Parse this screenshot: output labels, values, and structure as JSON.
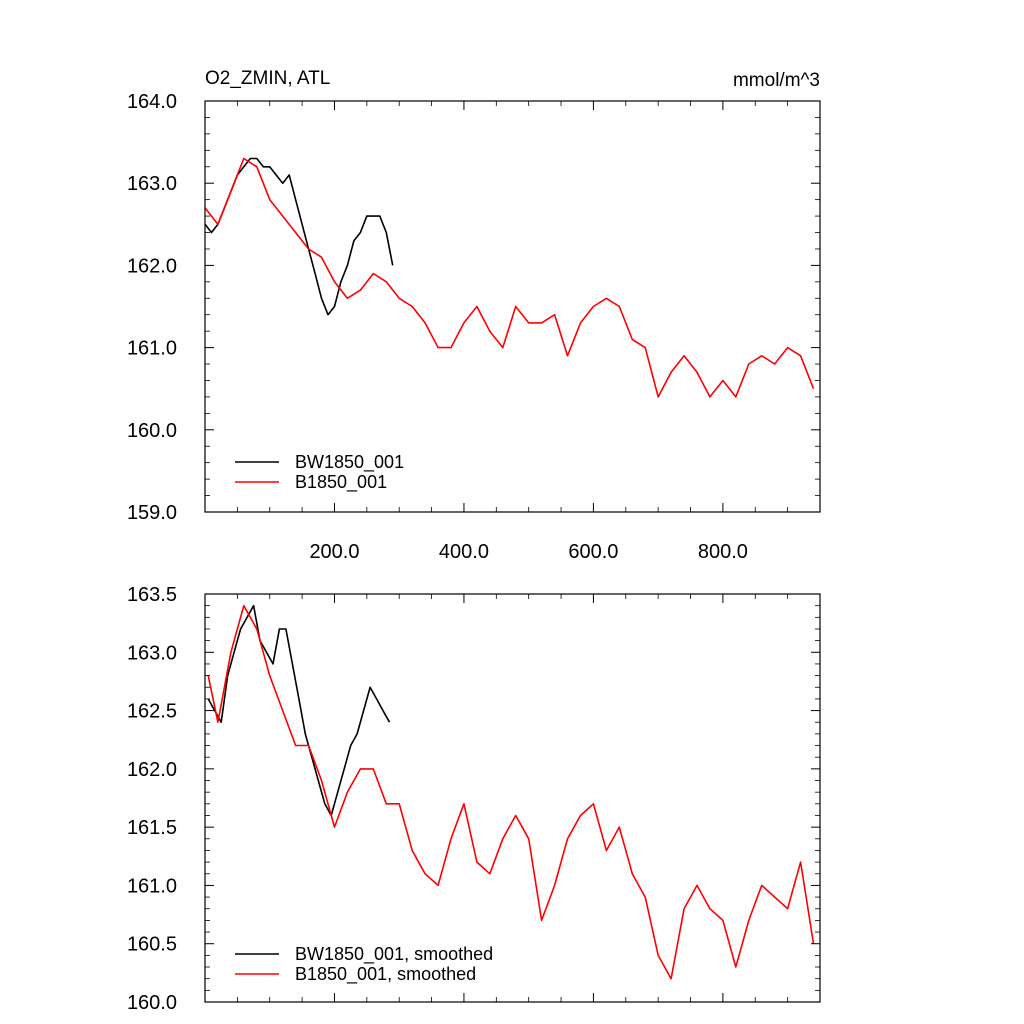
{
  "figure": {
    "title_left": "O2_ZMIN, ATL",
    "title_right": "mmol/m^3"
  },
  "chart_data": [
    {
      "type": "line",
      "xlim": [
        0,
        950
      ],
      "ylim": [
        159.0,
        164.0
      ],
      "x_ticks": [
        200,
        400,
        600,
        800
      ],
      "x_tick_labels": [
        "200.0",
        "400.0",
        "600.0",
        "800.0"
      ],
      "y_ticks": [
        159,
        160,
        161,
        162,
        163,
        164
      ],
      "y_tick_labels": [
        "159.0",
        "160.0",
        "161.0",
        "162.0",
        "163.0",
        "164.0"
      ],
      "grid": false,
      "legend": "bottom-left",
      "series": [
        {
          "name": "BW1850_001",
          "color": "#000000",
          "x": [
            0,
            10,
            20,
            30,
            40,
            50,
            60,
            70,
            80,
            90,
            100,
            110,
            120,
            130,
            140,
            150,
            160,
            170,
            180,
            190,
            200,
            210,
            220,
            230,
            240,
            250,
            260,
            270,
            280,
            290
          ],
          "y": [
            162.5,
            162.4,
            162.5,
            162.7,
            162.9,
            163.1,
            163.2,
            163.3,
            163.3,
            163.2,
            163.2,
            163.1,
            163.0,
            163.1,
            162.8,
            162.5,
            162.2,
            161.9,
            161.6,
            161.4,
            161.5,
            161.8,
            162.0,
            162.3,
            162.4,
            162.6,
            162.6,
            162.6,
            162.4,
            162.0
          ]
        },
        {
          "name": "B1850_001",
          "color": "#ff0000",
          "x": [
            0,
            20,
            40,
            60,
            80,
            100,
            120,
            140,
            160,
            180,
            200,
            220,
            240,
            260,
            280,
            300,
            320,
            340,
            360,
            380,
            400,
            420,
            440,
            460,
            480,
            500,
            520,
            540,
            560,
            580,
            600,
            620,
            640,
            660,
            680,
            700,
            720,
            740,
            760,
            780,
            800,
            820,
            840,
            860,
            880,
            900,
            920,
            940
          ],
          "y": [
            162.7,
            162.5,
            162.9,
            163.3,
            163.2,
            162.8,
            162.6,
            162.4,
            162.2,
            162.1,
            161.8,
            161.6,
            161.7,
            161.9,
            161.8,
            161.6,
            161.5,
            161.3,
            161.0,
            161.0,
            161.3,
            161.5,
            161.2,
            161.0,
            161.5,
            161.3,
            161.3,
            161.4,
            160.9,
            161.3,
            161.5,
            161.6,
            161.5,
            161.1,
            161.0,
            160.4,
            160.7,
            160.9,
            160.7,
            160.4,
            160.6,
            160.4,
            160.8,
            160.9,
            160.8,
            161.0,
            160.9,
            160.5
          ]
        }
      ]
    },
    {
      "type": "line",
      "xlim": [
        0,
        950
      ],
      "ylim": [
        160.0,
        163.5
      ],
      "x_ticks": [
        200,
        400,
        600,
        800
      ],
      "x_tick_labels": [],
      "y_ticks": [
        160.0,
        160.5,
        161.0,
        161.5,
        162.0,
        162.5,
        163.0,
        163.5
      ],
      "y_tick_labels": [
        "160.0",
        "160.5",
        "161.0",
        "161.5",
        "162.0",
        "162.5",
        "163.0",
        "163.5"
      ],
      "grid": false,
      "legend": "bottom-left",
      "series": [
        {
          "name": "BW1850_001, smoothed",
          "color": "#000000",
          "x": [
            5,
            15,
            25,
            35,
            45,
            55,
            65,
            75,
            85,
            95,
            105,
            115,
            125,
            135,
            145,
            155,
            165,
            175,
            185,
            195,
            205,
            215,
            225,
            235,
            245,
            255,
            265,
            275,
            285
          ],
          "y": [
            162.6,
            162.5,
            162.4,
            162.8,
            163.0,
            163.2,
            163.3,
            163.4,
            163.1,
            163.0,
            162.9,
            163.2,
            163.2,
            162.9,
            162.6,
            162.3,
            162.1,
            161.9,
            161.7,
            161.6,
            161.8,
            162.0,
            162.2,
            162.3,
            162.5,
            162.7,
            162.6,
            162.5,
            162.4
          ]
        },
        {
          "name": "B1850_001, smoothed",
          "color": "#ff0000",
          "x": [
            5,
            20,
            40,
            60,
            80,
            100,
            120,
            140,
            160,
            180,
            200,
            220,
            240,
            260,
            280,
            300,
            320,
            340,
            360,
            380,
            400,
            420,
            440,
            460,
            480,
            500,
            520,
            540,
            560,
            580,
            600,
            620,
            640,
            660,
            680,
            700,
            720,
            740,
            760,
            780,
            800,
            820,
            840,
            860,
            880,
            900,
            920,
            940
          ],
          "y": [
            162.8,
            162.4,
            163.0,
            163.4,
            163.2,
            162.8,
            162.5,
            162.2,
            162.2,
            161.9,
            161.5,
            161.8,
            162.0,
            162.0,
            161.7,
            161.7,
            161.3,
            161.1,
            161.0,
            161.4,
            161.7,
            161.2,
            161.1,
            161.4,
            161.6,
            161.4,
            160.7,
            161.0,
            161.4,
            161.6,
            161.7,
            161.3,
            161.5,
            161.1,
            160.9,
            160.4,
            160.2,
            160.8,
            161.0,
            160.8,
            160.7,
            160.3,
            160.7,
            161.0,
            160.9,
            160.8,
            161.2,
            160.5
          ]
        }
      ]
    }
  ]
}
